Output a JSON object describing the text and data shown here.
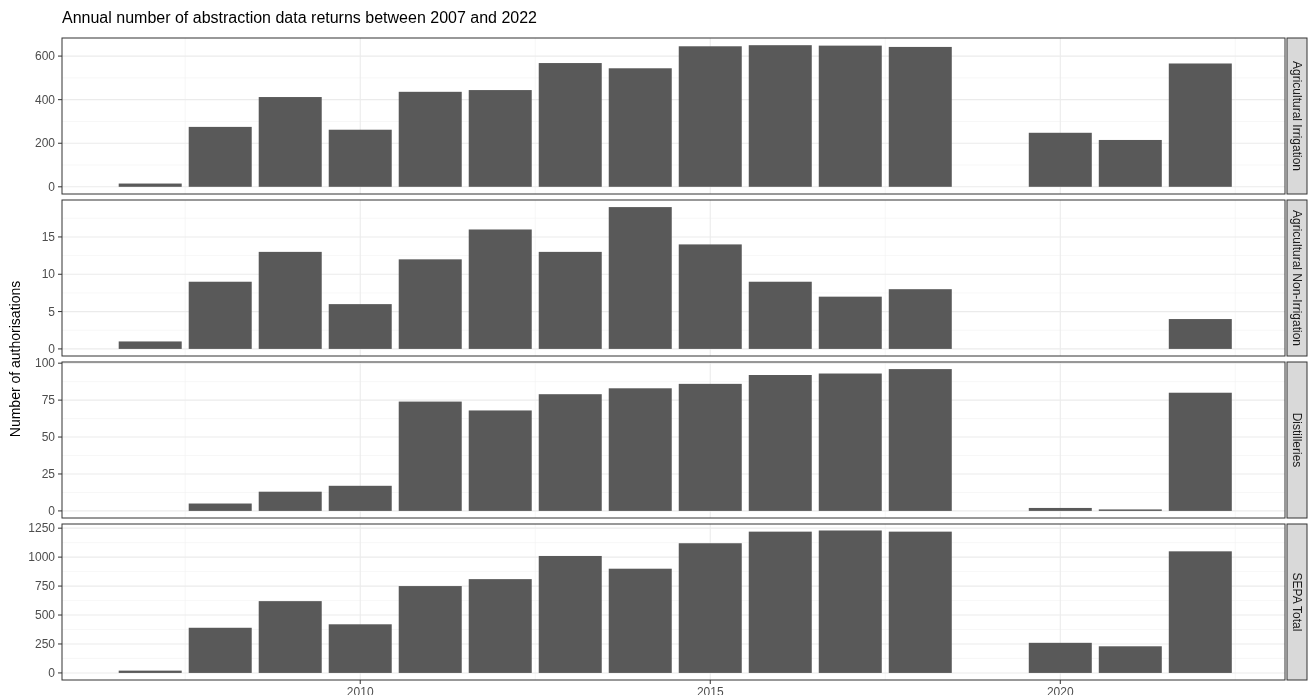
{
  "chart_data": [
    {
      "type": "bar",
      "title": "Annual number of abstraction data returns between 2007 and 2022",
      "xlim": [
        2005.74,
        2023.21
      ],
      "xticks": [
        2010,
        2015,
        2020
      ],
      "ylim": [
        -33,
        683
      ],
      "yticks": [
        0,
        200,
        400,
        600
      ],
      "grid": true,
      "tick_labels": "y",
      "series": [
        {
          "name": "Agricultural Irrigation",
          "color": "#595959",
          "x": [
            2007,
            2008,
            2009,
            2010,
            2011,
            2012,
            2013,
            2014,
            2015,
            2016,
            2017,
            2018,
            2020,
            2021,
            2022
          ],
          "values": [
            15,
            275,
            412,
            262,
            436,
            444,
            568,
            544,
            645,
            650,
            648,
            642,
            248,
            215,
            566
          ]
        }
      ]
    },
    {
      "type": "bar",
      "ylabel": "Number of authorisations",
      "xlim": [
        2005.74,
        2023.21
      ],
      "xticks": [
        2010,
        2015,
        2020
      ],
      "ylim": [
        -0.95,
        19.95
      ],
      "yticks": [
        0,
        5,
        10,
        15
      ],
      "grid": true,
      "tick_labels": "y",
      "series": [
        {
          "name": "Agricultural Non-Irrigation",
          "color": "#595959",
          "x": [
            2007,
            2008,
            2009,
            2010,
            2011,
            2012,
            2013,
            2014,
            2015,
            2016,
            2017,
            2018,
            2022
          ],
          "values": [
            1,
            9,
            13,
            6,
            12,
            16,
            13,
            19,
            14,
            9,
            7,
            8,
            4
          ]
        }
      ]
    },
    {
      "type": "bar",
      "xlim": [
        2005.74,
        2023.21
      ],
      "xticks": [
        2010,
        2015,
        2020
      ],
      "ylim": [
        -4.8,
        100.8
      ],
      "yticks": [
        0,
        25,
        50,
        75,
        100
      ],
      "grid": true,
      "tick_labels": "y",
      "series": [
        {
          "name": "Distilleries",
          "color": "#595959",
          "x": [
            2008,
            2009,
            2010,
            2011,
            2012,
            2013,
            2014,
            2015,
            2016,
            2017,
            2018,
            2020,
            2021,
            2022
          ],
          "values": [
            5,
            13,
            17,
            74,
            68,
            79,
            83,
            86,
            92,
            93,
            96,
            2,
            1,
            80
          ]
        }
      ]
    },
    {
      "type": "bar",
      "xlim": [
        2005.74,
        2023.21
      ],
      "xticks": [
        2010,
        2015,
        2020
      ],
      "ylim": [
        -61,
        1286
      ],
      "yticks": [
        0,
        250,
        500,
        750,
        1000,
        1250
      ],
      "grid": true,
      "series": [
        {
          "name": "SEPA Total",
          "color": "#595959",
          "x": [
            2007,
            2008,
            2009,
            2010,
            2011,
            2012,
            2013,
            2014,
            2015,
            2016,
            2017,
            2018,
            2020,
            2021,
            2022
          ],
          "values": [
            20,
            390,
            620,
            420,
            750,
            810,
            1010,
            900,
            1120,
            1220,
            1230,
            1220,
            260,
            230,
            1050
          ]
        }
      ]
    }
  ]
}
